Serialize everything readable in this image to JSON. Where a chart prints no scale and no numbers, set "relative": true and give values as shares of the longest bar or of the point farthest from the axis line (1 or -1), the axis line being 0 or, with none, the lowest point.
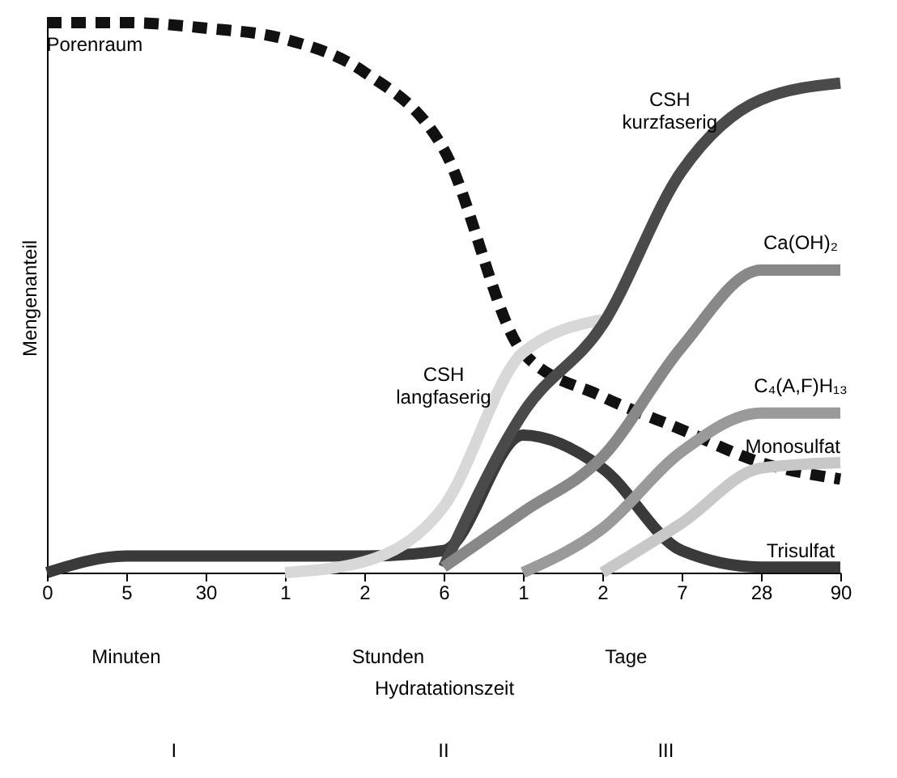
{
  "chart_data": {
    "type": "line",
    "relative": true,
    "ylabel": "Mengenanteil",
    "xlabel": "Hydratationszeit",
    "categories": [
      "0",
      "5",
      "30",
      "1",
      "2",
      "6",
      "1",
      "2",
      "7",
      "28",
      "90"
    ],
    "grid": false,
    "legend": false,
    "marker": "none",
    "annotations": [
      "Minuten",
      "Stunden",
      "Tage",
      "I",
      "II",
      "III"
    ],
    "series": [
      {
        "name": "Porenraum",
        "color": "#111111",
        "line_style": "dashed",
        "values": [
          1.0,
          1.0,
          0.99,
          0.97,
          0.91,
          0.77,
          0.4,
          0.32,
          0.26,
          0.2,
          0.17
        ]
      },
      {
        "name": "Trisulfat",
        "color": "#3a3a3a",
        "values": [
          0,
          0.03,
          0.03,
          0.03,
          0.03,
          0.04,
          0.25,
          0.19,
          0.04,
          0.01,
          0.01
        ]
      },
      {
        "name": "CSH\nlangfaserig",
        "color": "#d8d8d8",
        "values": [
          null,
          null,
          null,
          0,
          0.02,
          0.12,
          0.4,
          0.46,
          null,
          null,
          null
        ]
      },
      {
        "name": "CSH\nkurzfaserig",
        "color": "#4a4a4a",
        "values": [
          null,
          null,
          null,
          null,
          null,
          0.01,
          0.29,
          0.45,
          0.73,
          0.86,
          0.89
        ]
      },
      {
        "name": "Ca(OH)₂",
        "color": "#888888",
        "values": [
          null,
          null,
          null,
          null,
          null,
          0.01,
          0.11,
          0.21,
          0.41,
          0.55,
          0.55
        ]
      },
      {
        "name": "C₄(A,F)H₁₃",
        "color": "#9a9a9a",
        "values": [
          null,
          null,
          null,
          null,
          null,
          null,
          0,
          0.08,
          0.22,
          0.29,
          0.29
        ]
      },
      {
        "name": "Monosulfat",
        "color": "#c8c8c8",
        "values": [
          null,
          null,
          null,
          null,
          null,
          null,
          null,
          0,
          0.09,
          0.19,
          0.2
        ]
      }
    ]
  }
}
